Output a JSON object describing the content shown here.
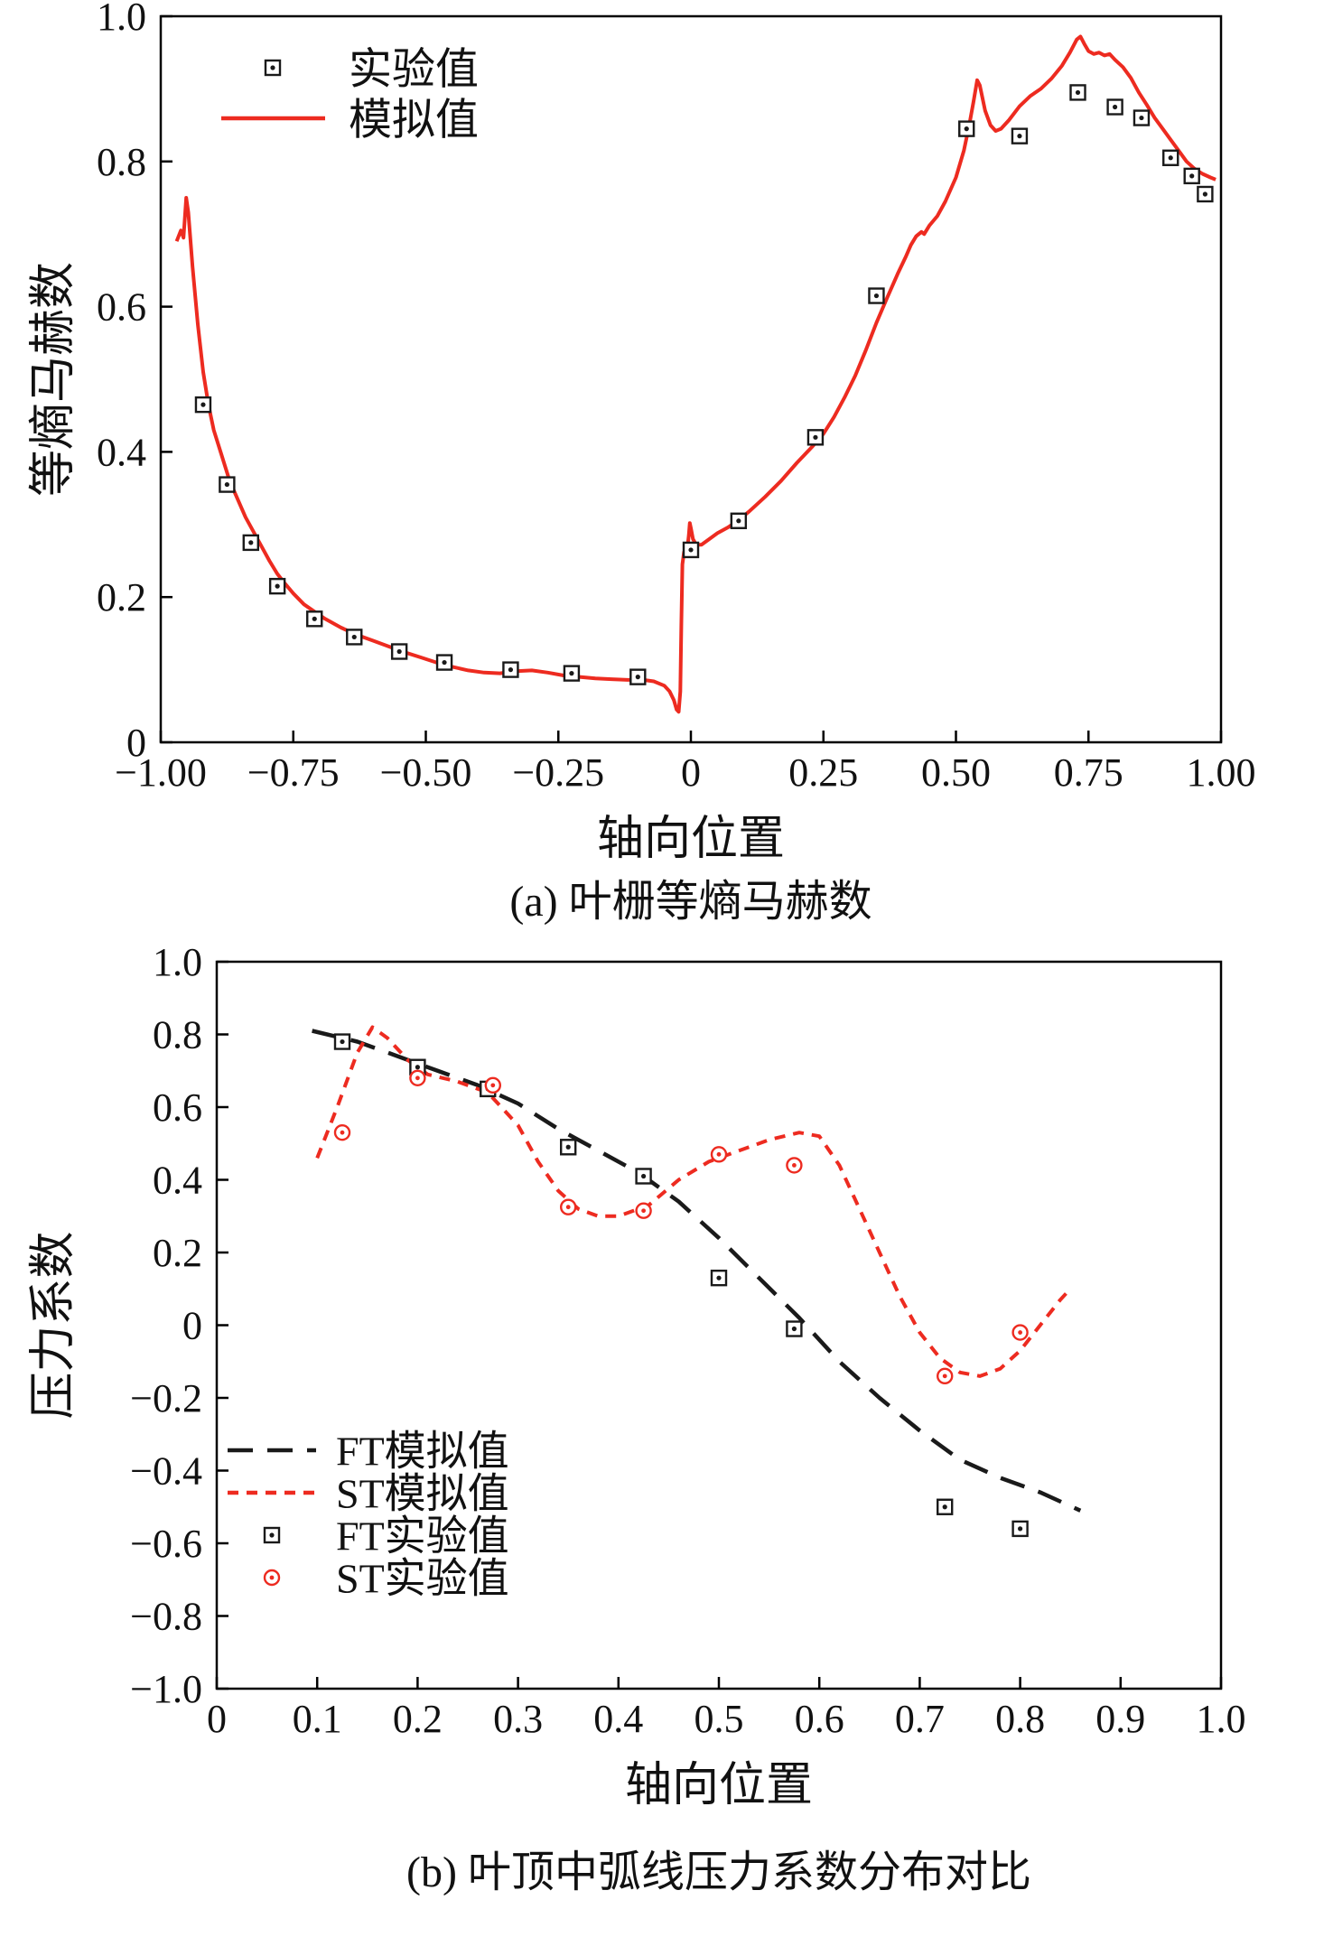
{
  "colors": {
    "red": "#ed2b20",
    "black": "#1a1a1a",
    "axis": "#000000"
  },
  "chart_data": [
    {
      "type": "line",
      "caption": "(a) 叶栅等熵马赫数",
      "xlabel": "轴向位置",
      "ylabel": "等熵马赫数",
      "xlim": [
        -1.0,
        1.0
      ],
      "ylim": [
        0.0,
        1.0
      ],
      "grid": false,
      "legend_position": "top-left-inside",
      "xticks": {
        "values": [
          -1.0,
          -0.75,
          -0.5,
          -0.25,
          0,
          0.25,
          0.5,
          0.75,
          1.0
        ],
        "labels": [
          "−1.00",
          "−0.75",
          "−0.50",
          "−0.25",
          "0",
          "0.25",
          "0.50",
          "0.75",
          "1.00"
        ]
      },
      "yticks": {
        "values": [
          0,
          0.2,
          0.4,
          0.6,
          0.8,
          1.0
        ],
        "labels": [
          "0",
          "0.2",
          "0.4",
          "0.6",
          "0.8",
          "1.0"
        ]
      },
      "legend": [
        {
          "label": "实验值",
          "sample": "marker-square",
          "color": "#1a1a1a"
        },
        {
          "label": "模拟值",
          "sample": "line-solid",
          "color": "#ed2b20"
        }
      ],
      "series": [
        {
          "name": "模拟值",
          "kind": "line",
          "style": "solid",
          "color": "#ed2b20",
          "width": 4,
          "points": [
            [
              -0.97,
              0.69
            ],
            [
              -0.962,
              0.705
            ],
            [
              -0.957,
              0.695
            ],
            [
              -0.952,
              0.75
            ],
            [
              -0.948,
              0.73
            ],
            [
              -0.94,
              0.655
            ],
            [
              -0.93,
              0.575
            ],
            [
              -0.92,
              0.51
            ],
            [
              -0.91,
              0.465
            ],
            [
              -0.9,
              0.43
            ],
            [
              -0.885,
              0.395
            ],
            [
              -0.87,
              0.36
            ],
            [
              -0.855,
              0.335
            ],
            [
              -0.84,
              0.31
            ],
            [
              -0.825,
              0.29
            ],
            [
              -0.81,
              0.27
            ],
            [
              -0.795,
              0.25
            ],
            [
              -0.78,
              0.232
            ],
            [
              -0.765,
              0.218
            ],
            [
              -0.75,
              0.205
            ],
            [
              -0.73,
              0.19
            ],
            [
              -0.71,
              0.18
            ],
            [
              -0.69,
              0.17
            ],
            [
              -0.66,
              0.158
            ],
            [
              -0.63,
              0.148
            ],
            [
              -0.6,
              0.14
            ],
            [
              -0.57,
              0.132
            ],
            [
              -0.54,
              0.124
            ],
            [
              -0.51,
              0.117
            ],
            [
              -0.48,
              0.11
            ],
            [
              -0.45,
              0.104
            ],
            [
              -0.42,
              0.099
            ],
            [
              -0.39,
              0.096
            ],
            [
              -0.36,
              0.095
            ],
            [
              -0.33,
              0.098
            ],
            [
              -0.3,
              0.099
            ],
            [
              -0.27,
              0.096
            ],
            [
              -0.24,
              0.092
            ],
            [
              -0.21,
              0.09
            ],
            [
              -0.18,
              0.088
            ],
            [
              -0.15,
              0.087
            ],
            [
              -0.12,
              0.086
            ],
            [
              -0.09,
              0.086
            ],
            [
              -0.07,
              0.084
            ],
            [
              -0.05,
              0.078
            ],
            [
              -0.04,
              0.07
            ],
            [
              -0.032,
              0.058
            ],
            [
              -0.027,
              0.045
            ],
            [
              -0.023,
              0.042
            ],
            [
              -0.02,
              0.07
            ],
            [
              -0.018,
              0.16
            ],
            [
              -0.016,
              0.245
            ],
            [
              -0.013,
              0.262
            ],
            [
              -0.01,
              0.258
            ],
            [
              -0.007,
              0.265
            ],
            [
              -0.004,
              0.285
            ],
            [
              -0.002,
              0.302
            ],
            [
              0,
              0.295
            ],
            [
              0.004,
              0.28
            ],
            [
              0.01,
              0.272
            ],
            [
              0.02,
              0.272
            ],
            [
              0.035,
              0.28
            ],
            [
              0.05,
              0.288
            ],
            [
              0.07,
              0.296
            ],
            [
              0.09,
              0.306
            ],
            [
              0.11,
              0.318
            ],
            [
              0.14,
              0.338
            ],
            [
              0.17,
              0.36
            ],
            [
              0.2,
              0.385
            ],
            [
              0.23,
              0.408
            ],
            [
              0.25,
              0.425
            ],
            [
              0.27,
              0.448
            ],
            [
              0.29,
              0.475
            ],
            [
              0.31,
              0.505
            ],
            [
              0.33,
              0.54
            ],
            [
              0.35,
              0.578
            ],
            [
              0.37,
              0.612
            ],
            [
              0.39,
              0.645
            ],
            [
              0.405,
              0.668
            ],
            [
              0.415,
              0.685
            ],
            [
              0.425,
              0.697
            ],
            [
              0.435,
              0.703
            ],
            [
              0.44,
              0.7
            ],
            [
              0.45,
              0.712
            ],
            [
              0.465,
              0.725
            ],
            [
              0.48,
              0.745
            ],
            [
              0.5,
              0.778
            ],
            [
              0.515,
              0.815
            ],
            [
              0.525,
              0.85
            ],
            [
              0.533,
              0.882
            ],
            [
              0.54,
              0.912
            ],
            [
              0.545,
              0.905
            ],
            [
              0.555,
              0.87
            ],
            [
              0.565,
              0.85
            ],
            [
              0.575,
              0.842
            ],
            [
              0.585,
              0.845
            ],
            [
              0.6,
              0.857
            ],
            [
              0.62,
              0.876
            ],
            [
              0.64,
              0.89
            ],
            [
              0.66,
              0.9
            ],
            [
              0.68,
              0.914
            ],
            [
              0.7,
              0.932
            ],
            [
              0.715,
              0.95
            ],
            [
              0.728,
              0.968
            ],
            [
              0.735,
              0.972
            ],
            [
              0.742,
              0.962
            ],
            [
              0.75,
              0.952
            ],
            [
              0.76,
              0.948
            ],
            [
              0.77,
              0.95
            ],
            [
              0.78,
              0.946
            ],
            [
              0.79,
              0.948
            ],
            [
              0.8,
              0.94
            ],
            [
              0.815,
              0.93
            ],
            [
              0.83,
              0.915
            ],
            [
              0.845,
              0.895
            ],
            [
              0.86,
              0.878
            ],
            [
              0.875,
              0.86
            ],
            [
              0.89,
              0.845
            ],
            [
              0.905,
              0.83
            ],
            [
              0.92,
              0.815
            ],
            [
              0.935,
              0.8
            ],
            [
              0.95,
              0.79
            ],
            [
              0.965,
              0.783
            ],
            [
              0.98,
              0.778
            ],
            [
              0.99,
              0.775
            ]
          ]
        },
        {
          "name": "实验值",
          "kind": "scatter",
          "marker": "square",
          "color": "#1a1a1a",
          "points": [
            [
              -0.92,
              0.465
            ],
            [
              -0.875,
              0.355
            ],
            [
              -0.83,
              0.275
            ],
            [
              -0.78,
              0.215
            ],
            [
              -0.71,
              0.17
            ],
            [
              -0.635,
              0.145
            ],
            [
              -0.55,
              0.125
            ],
            [
              -0.465,
              0.11
            ],
            [
              -0.34,
              0.1
            ],
            [
              -0.225,
              0.095
            ],
            [
              -0.1,
              0.09
            ],
            [
              0,
              0.265
            ],
            [
              0.09,
              0.305
            ],
            [
              0.235,
              0.42
            ],
            [
              0.35,
              0.615
            ],
            [
              0.52,
              0.845
            ],
            [
              0.62,
              0.835
            ],
            [
              0.73,
              0.895
            ],
            [
              0.8,
              0.875
            ],
            [
              0.85,
              0.86
            ],
            [
              0.905,
              0.805
            ],
            [
              0.945,
              0.78
            ],
            [
              0.97,
              0.755
            ]
          ]
        }
      ]
    },
    {
      "type": "line",
      "caption": "(b) 叶顶中弧线压力系数分布对比",
      "xlabel": "轴向位置",
      "ylabel": "压力系数",
      "xlim": [
        0.0,
        1.0
      ],
      "ylim": [
        -1.0,
        1.0
      ],
      "grid": false,
      "legend_position": "bottom-left-inside",
      "xticks": {
        "values": [
          0,
          0.1,
          0.2,
          0.3,
          0.4,
          0.5,
          0.6,
          0.7,
          0.8,
          0.9,
          1.0
        ],
        "labels": [
          "0",
          "0.1",
          "0.2",
          "0.3",
          "0.4",
          "0.5",
          "0.6",
          "0.7",
          "0.8",
          "0.9",
          "1.0"
        ]
      },
      "yticks": {
        "values": [
          -1.0,
          -0.8,
          -0.6,
          -0.4,
          -0.2,
          0,
          0.2,
          0.4,
          0.6,
          0.8,
          1.0
        ],
        "labels": [
          "−1.0",
          "−0.8",
          "−0.6",
          "−0.4",
          "−0.2",
          "0",
          "0.2",
          "0.4",
          "0.6",
          "0.8",
          "1.0"
        ]
      },
      "legend": [
        {
          "label": "FT模拟值",
          "sample": "line-longdash",
          "color": "#1a1a1a"
        },
        {
          "label": "ST模拟值",
          "sample": "line-shortdash",
          "color": "#ed2b20"
        },
        {
          "label": "FT实验值",
          "sample": "marker-square",
          "color": "#1a1a1a"
        },
        {
          "label": "ST实验值",
          "sample": "marker-circle",
          "color": "#ed2b20"
        }
      ],
      "series": [
        {
          "name": "FT模拟值",
          "kind": "line",
          "style": "longdash",
          "color": "#1a1a1a",
          "width": 4.5,
          "points": [
            [
              0.095,
              0.81
            ],
            [
              0.14,
              0.78
            ],
            [
              0.18,
              0.74
            ],
            [
              0.22,
              0.7
            ],
            [
              0.26,
              0.66
            ],
            [
              0.3,
              0.61
            ],
            [
              0.34,
              0.54
            ],
            [
              0.38,
              0.48
            ],
            [
              0.42,
              0.42
            ],
            [
              0.46,
              0.34
            ],
            [
              0.5,
              0.24
            ],
            [
              0.54,
              0.13
            ],
            [
              0.58,
              0.02
            ],
            [
              0.62,
              -0.1
            ],
            [
              0.66,
              -0.2
            ],
            [
              0.7,
              -0.29
            ],
            [
              0.74,
              -0.37
            ],
            [
              0.78,
              -0.42
            ],
            [
              0.82,
              -0.46
            ],
            [
              0.86,
              -0.51
            ]
          ]
        },
        {
          "name": "ST模拟值",
          "kind": "line",
          "style": "shortdash",
          "color": "#ed2b20",
          "width": 4,
          "points": [
            [
              0.1,
              0.46
            ],
            [
              0.12,
              0.6
            ],
            [
              0.14,
              0.75
            ],
            [
              0.155,
              0.82
            ],
            [
              0.17,
              0.79
            ],
            [
              0.19,
              0.73
            ],
            [
              0.21,
              0.69
            ],
            [
              0.24,
              0.67
            ],
            [
              0.27,
              0.64
            ],
            [
              0.3,
              0.55
            ],
            [
              0.32,
              0.45
            ],
            [
              0.34,
              0.37
            ],
            [
              0.36,
              0.32
            ],
            [
              0.38,
              0.3
            ],
            [
              0.4,
              0.3
            ],
            [
              0.43,
              0.33
            ],
            [
              0.46,
              0.4
            ],
            [
              0.49,
              0.45
            ],
            [
              0.52,
              0.48
            ],
            [
              0.55,
              0.51
            ],
            [
              0.58,
              0.53
            ],
            [
              0.6,
              0.52
            ],
            [
              0.62,
              0.44
            ],
            [
              0.64,
              0.32
            ],
            [
              0.66,
              0.2
            ],
            [
              0.68,
              0.08
            ],
            [
              0.7,
              -0.02
            ],
            [
              0.72,
              -0.09
            ],
            [
              0.74,
              -0.13
            ],
            [
              0.76,
              -0.14
            ],
            [
              0.78,
              -0.12
            ],
            [
              0.8,
              -0.07
            ],
            [
              0.82,
              0
            ],
            [
              0.84,
              0.07
            ],
            [
              0.85,
              0.1
            ]
          ]
        },
        {
          "name": "FT实验值",
          "kind": "scatter",
          "marker": "square",
          "color": "#1a1a1a",
          "points": [
            [
              0.125,
              0.78
            ],
            [
              0.2,
              0.71
            ],
            [
              0.27,
              0.65
            ],
            [
              0.35,
              0.49
            ],
            [
              0.425,
              0.41
            ],
            [
              0.5,
              0.13
            ],
            [
              0.575,
              -0.01
            ],
            [
              0.725,
              -0.5
            ],
            [
              0.8,
              -0.56
            ]
          ]
        },
        {
          "name": "ST实验值",
          "kind": "scatter",
          "marker": "circle",
          "color": "#ed2b20",
          "points": [
            [
              0.125,
              0.53
            ],
            [
              0.2,
              0.68
            ],
            [
              0.275,
              0.66
            ],
            [
              0.35,
              0.325
            ],
            [
              0.425,
              0.315
            ],
            [
              0.5,
              0.47
            ],
            [
              0.575,
              0.44
            ],
            [
              0.725,
              -0.14
            ],
            [
              0.8,
              -0.02
            ]
          ]
        }
      ]
    }
  ]
}
